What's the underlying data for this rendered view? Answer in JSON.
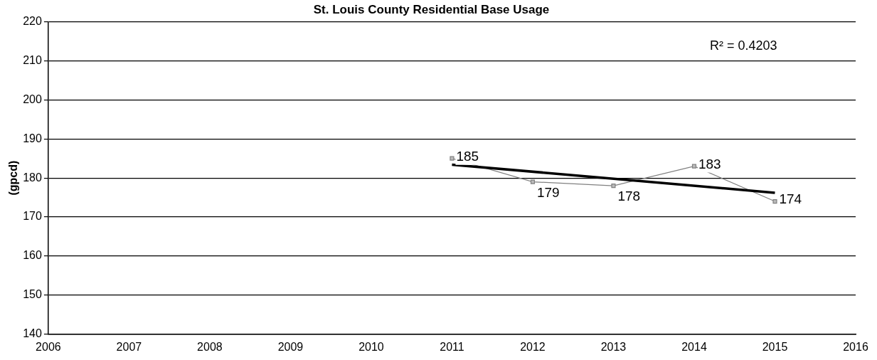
{
  "chart_data": {
    "type": "line",
    "title": "St. Louis County Residential Base Usage",
    "ylabel": "(gpcd)",
    "x": [
      2011,
      2012,
      2013,
      2014,
      2015
    ],
    "series": [
      {
        "color": "#808080",
        "values": [
          185,
          179,
          178,
          183,
          174
        ],
        "value_labels": [
          "185",
          "179",
          "178",
          "183",
          "174"
        ],
        "marker": "square"
      },
      {
        "type": "line",
        "color": "#000000",
        "x": [
          2011,
          2015
        ],
        "values": [
          183.4,
          176.2
        ],
        "marker": "none"
      }
    ],
    "xlim": [
      2006,
      2016
    ],
    "xticks": [
      2006,
      2007,
      2008,
      2009,
      2010,
      2011,
      2012,
      2013,
      2014,
      2015,
      2016
    ],
    "ylim": [
      140,
      220
    ],
    "yticks": [
      140,
      150,
      160,
      170,
      180,
      190,
      200,
      210,
      220
    ],
    "grid": "y",
    "legend": false,
    "annotations": [
      "R² = 0.4203"
    ]
  }
}
